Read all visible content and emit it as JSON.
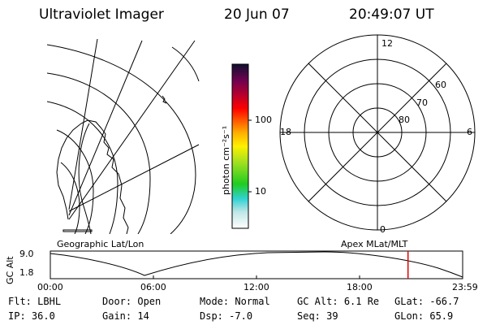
{
  "header": {
    "instrument": "Ultraviolet Imager",
    "date": "20 Jun 07",
    "time": "20:49:07 UT"
  },
  "colorbar": {
    "unit_label": "photon cm⁻²s⁻¹",
    "ticks": [
      {
        "label": "100",
        "value": 100
      },
      {
        "label": "10",
        "value": 10
      }
    ]
  },
  "geo_map": {
    "label": "Geographic Lat/Lon"
  },
  "polar": {
    "label": "Apex MLat/MLT",
    "mlt_labels": {
      "top": "12",
      "left": "18",
      "right": "6",
      "bottom": "0"
    },
    "lat_labels": [
      "60",
      "70",
      "80"
    ]
  },
  "altitude_plot": {
    "ylabel": "GC Alt",
    "yticks": [
      "9.0",
      "1.8"
    ],
    "xticks": [
      "00:00",
      "06:00",
      "12:00",
      "18:00",
      "23:59"
    ],
    "current_time_hours": 20.82
  },
  "footer": {
    "row1": [
      {
        "key": "Flt:",
        "value": "LBHL"
      },
      {
        "key": "Door:",
        "value": "Open"
      },
      {
        "key": "Mode:",
        "value": "Normal"
      },
      {
        "key": "GC Alt:",
        "value": "6.1 Re"
      },
      {
        "key": "GLat:",
        "value": "-66.7"
      }
    ],
    "row2": [
      {
        "key": "IP:",
        "value": "36.0"
      },
      {
        "key": "Gain:",
        "value": "14"
      },
      {
        "key": "Dsp:",
        "value": "-7.0"
      },
      {
        "key": "Seq:",
        "value": "39"
      },
      {
        "key": "GLon:",
        "value": "65.9"
      }
    ]
  },
  "colors": {
    "marker": "#e00000",
    "lines": "#000000"
  }
}
